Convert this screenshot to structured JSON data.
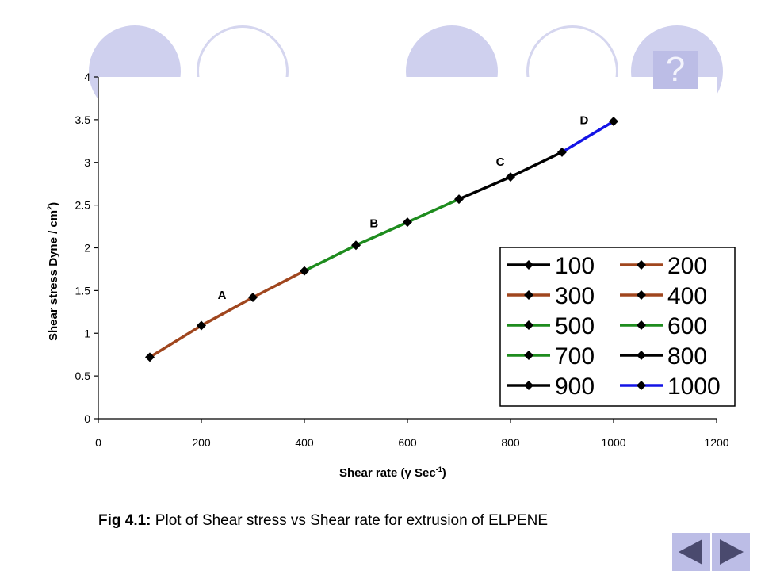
{
  "help": {
    "label": "?"
  },
  "caption": {
    "prefix": "Fig 4.1:",
    "text": " Plot of Shear stress vs Shear rate for extrusion of ELPENE"
  },
  "colors": {
    "brown": "#a0461e",
    "green": "#1e8c1e",
    "black": "#000000",
    "blue": "#1414e6",
    "circle_fill": "#cfd0ee",
    "circle_ring": "#d5d6ef",
    "nav": "#bcbde6",
    "nav_arrow": "#4a4a6e"
  },
  "chart_data": {
    "type": "line",
    "xlabel": "Shear rate (γ Sec",
    "xlabel_sup": "-1",
    "xlabel_end": ")",
    "ylabel": "Shear stress Dyne / cm",
    "ylabel_sup": "2",
    "ylabel_end": ")",
    "xlim": [
      0,
      1200
    ],
    "ylim": [
      0,
      4
    ],
    "xticks": [
      "0",
      "200",
      "400",
      "600",
      "800",
      "1000",
      "1200"
    ],
    "yticks": [
      "0",
      "0.5",
      "1",
      "1.5",
      "2",
      "2.5",
      "3",
      "3.5",
      "4"
    ],
    "grid": false,
    "legend_position": "right",
    "series": [
      {
        "name": "100",
        "color": "#000000",
        "x": [
          100
        ],
        "y": [
          0.72
        ]
      },
      {
        "name": "200",
        "color": "#a0461e",
        "x": [
          100,
          200
        ],
        "y": [
          0.72,
          1.09
        ]
      },
      {
        "name": "300",
        "color": "#a0461e",
        "x": [
          200,
          300
        ],
        "y": [
          1.09,
          1.42
        ]
      },
      {
        "name": "400",
        "color": "#a0461e",
        "x": [
          300,
          400
        ],
        "y": [
          1.42,
          1.73
        ]
      },
      {
        "name": "500",
        "color": "#1e8c1e",
        "x": [
          400,
          500
        ],
        "y": [
          1.73,
          2.03
        ]
      },
      {
        "name": "600",
        "color": "#1e8c1e",
        "x": [
          500,
          600
        ],
        "y": [
          2.03,
          2.3
        ]
      },
      {
        "name": "700",
        "color": "#1e8c1e",
        "x": [
          600,
          700
        ],
        "y": [
          2.3,
          2.57
        ]
      },
      {
        "name": "800",
        "color": "#000000",
        "x": [
          700,
          800
        ],
        "y": [
          2.57,
          2.83
        ]
      },
      {
        "name": "900",
        "color": "#000000",
        "x": [
          800,
          900
        ],
        "y": [
          2.83,
          3.12
        ]
      },
      {
        "name": "1000",
        "color": "#1414e6",
        "x": [
          900,
          1000
        ],
        "y": [
          3.12,
          3.48
        ]
      }
    ],
    "annotations": [
      {
        "text": "A",
        "x": 240,
        "y": 1.4
      },
      {
        "text": "B",
        "x": 535,
        "y": 2.24
      },
      {
        "text": "C",
        "x": 780,
        "y": 2.96
      },
      {
        "text": "D",
        "x": 943,
        "y": 3.45
      }
    ]
  }
}
